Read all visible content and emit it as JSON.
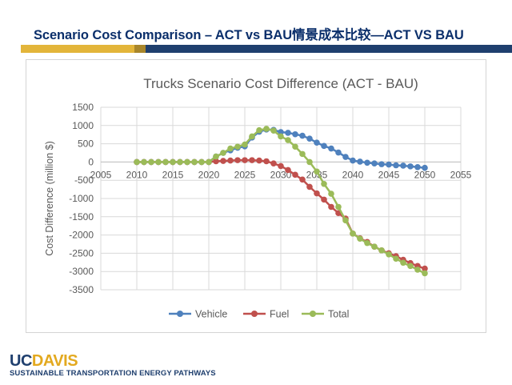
{
  "slide": {
    "title": "Scenario Cost Comparison – ACT vs BAU情景成本比较—ACT VS BAU"
  },
  "footer": {
    "logo_uc": "UC",
    "logo_davis": "DAVIS",
    "tagline": "SUSTAINABLE TRANSPORTATION ENERGY PATHWAYS"
  },
  "colors": {
    "vehicle": "#4f81bd",
    "fuel": "#c0504d",
    "total": "#9bbb59",
    "grid": "#d9d9d9",
    "text": "#595959"
  },
  "chart_data": {
    "type": "line",
    "title": "Trucks Scenario Cost Difference (ACT - BAU)",
    "xlabel": "",
    "ylabel": "Cost Difference (million $)",
    "xlim": [
      2005,
      2055
    ],
    "ylim": [
      -3500,
      1500
    ],
    "xticks": [
      2005,
      2010,
      2015,
      2020,
      2025,
      2030,
      2035,
      2040,
      2045,
      2050,
      2055
    ],
    "yticks": [
      1500,
      1000,
      500,
      0,
      -500,
      -1000,
      -1500,
      -2000,
      -2500,
      -3000,
      -3500
    ],
    "grid": true,
    "legend": "bottom",
    "x": [
      2010,
      2011,
      2012,
      2013,
      2014,
      2015,
      2016,
      2017,
      2018,
      2019,
      2020,
      2021,
      2022,
      2023,
      2024,
      2025,
      2026,
      2027,
      2028,
      2029,
      2030,
      2031,
      2032,
      2033,
      2034,
      2035,
      2036,
      2037,
      2038,
      2039,
      2040,
      2041,
      2042,
      2043,
      2044,
      2045,
      2046,
      2047,
      2048,
      2049,
      2050
    ],
    "series": [
      {
        "name": "Vehicle",
        "values": [
          0,
          0,
          0,
          0,
          0,
          0,
          0,
          0,
          0,
          0,
          0,
          150,
          250,
          320,
          390,
          430,
          670,
          830,
          890,
          880,
          820,
          800,
          760,
          720,
          640,
          530,
          440,
          370,
          260,
          140,
          40,
          10,
          -20,
          -40,
          -60,
          -70,
          -90,
          -100,
          -120,
          -140,
          -160
        ]
      },
      {
        "name": "Fuel",
        "values": [
          0,
          0,
          0,
          0,
          0,
          0,
          0,
          0,
          0,
          0,
          0,
          20,
          30,
          40,
          50,
          50,
          50,
          40,
          20,
          -40,
          -110,
          -220,
          -350,
          -480,
          -680,
          -860,
          -1030,
          -1230,
          -1400,
          -1550,
          -1960,
          -2090,
          -2190,
          -2320,
          -2420,
          -2500,
          -2580,
          -2680,
          -2770,
          -2850,
          -2920
        ]
      },
      {
        "name": "Total",
        "values": [
          0,
          0,
          0,
          0,
          0,
          0,
          0,
          0,
          0,
          0,
          0,
          150,
          250,
          370,
          420,
          480,
          700,
          870,
          910,
          860,
          700,
          600,
          420,
          220,
          0,
          -260,
          -600,
          -870,
          -1230,
          -1600,
          -1960,
          -2100,
          -2220,
          -2320,
          -2420,
          -2530,
          -2650,
          -2760,
          -2850,
          -2950,
          -3050
        ]
      }
    ]
  }
}
